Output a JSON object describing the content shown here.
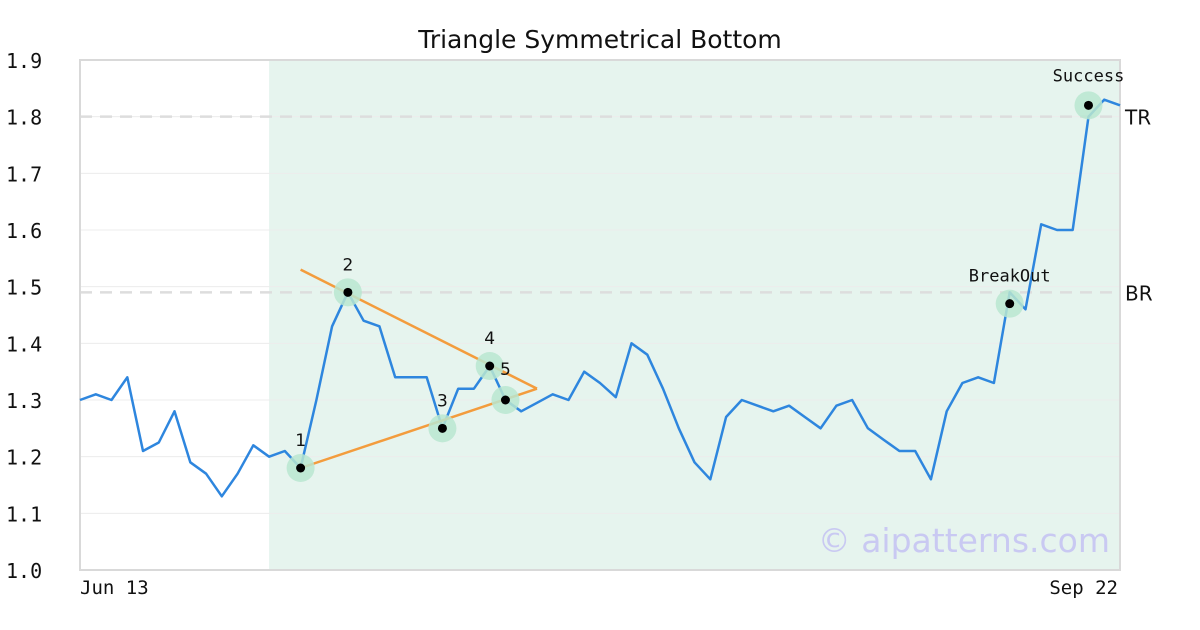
{
  "chart_data": {
    "type": "line",
    "title": "Triangle Symmetrical Bottom",
    "ylim": [
      1.0,
      1.9
    ],
    "y_ticks": [
      "1.0",
      "1.1",
      "1.2",
      "1.3",
      "1.4",
      "1.5",
      "1.6",
      "1.7",
      "1.8",
      "1.9"
    ],
    "x_tick_labels": [
      "Jun 13",
      "Sep 22"
    ],
    "grid": "horizontal",
    "series": [
      {
        "color": "#2e86de",
        "values": [
          1.3,
          1.31,
          1.3,
          1.34,
          1.21,
          1.225,
          1.28,
          1.19,
          1.17,
          1.13,
          1.17,
          1.22,
          1.2,
          1.21,
          1.18,
          1.3,
          1.43,
          1.49,
          1.44,
          1.43,
          1.34,
          1.34,
          1.34,
          1.25,
          1.32,
          1.32,
          1.36,
          1.3,
          1.28,
          1.295,
          1.31,
          1.3,
          1.35,
          1.33,
          1.305,
          1.4,
          1.38,
          1.32,
          1.25,
          1.19,
          1.16,
          1.27,
          1.3,
          1.29,
          1.28,
          1.29,
          1.27,
          1.25,
          1.29,
          1.3,
          1.25,
          1.23,
          1.21,
          1.21,
          1.16,
          1.28,
          1.33,
          1.34,
          1.33,
          1.49,
          1.46,
          1.61,
          1.6,
          1.6,
          1.8,
          1.83,
          1.82
        ]
      }
    ],
    "highlight_region": {
      "start_index": 12,
      "end_index": 66,
      "color": "#e6f4ee"
    },
    "levels": [
      {
        "label": "TR",
        "value": 1.8
      },
      {
        "label": "BR",
        "value": 1.49
      }
    ],
    "trendlines": [
      {
        "color": "#f39c3d",
        "from": {
          "index": 14,
          "value": 1.18
        },
        "to": {
          "index": 29,
          "value": 1.32
        }
      },
      {
        "color": "#f39c3d",
        "from": {
          "index": 14,
          "value": 1.53
        },
        "to": {
          "index": 29,
          "value": 1.32
        }
      }
    ],
    "points": [
      {
        "label": "1",
        "index": 14,
        "value": 1.18
      },
      {
        "label": "2",
        "index": 17,
        "value": 1.49
      },
      {
        "label": "3",
        "index": 23,
        "value": 1.25
      },
      {
        "label": "4",
        "index": 26,
        "value": 1.36
      },
      {
        "label": "5",
        "index": 27,
        "value": 1.3
      },
      {
        "label": "BreakOut",
        "index": 59,
        "value": 1.47
      },
      {
        "label": "Success",
        "index": 64,
        "value": 1.82
      }
    ],
    "watermark": "© aipatterns.com",
    "colors": {
      "line": "#2e86de",
      "trend": "#f39c3d",
      "marker_halo": "#b9e6d0",
      "marker_dot": "#000000",
      "level_line": "#dddddd"
    }
  }
}
